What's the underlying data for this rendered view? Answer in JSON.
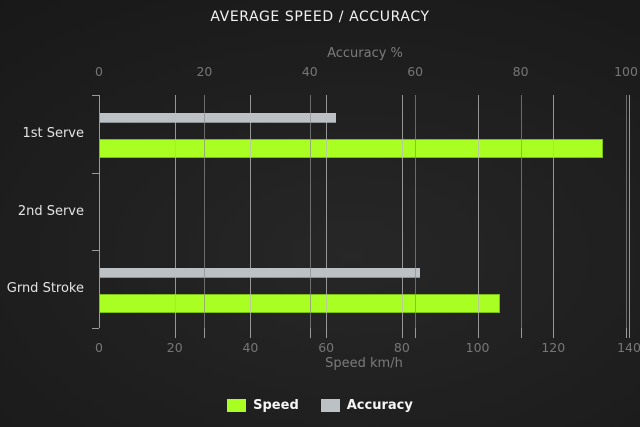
{
  "title": "AVERAGE SPEED / ACCURACY",
  "colors": {
    "speed_bar": "#aaff22",
    "accuracy_bar": "#bcc1c6",
    "grid_speed": "rgba(190,190,190,0.75)",
    "grid_accuracy": "rgba(140,140,140,0.7)",
    "spine": "#9a9a9a",
    "title_text": "#f2f2f2",
    "dim_text": "#7b7b7b",
    "category_text": "#e3e3e3",
    "legend_text": "#f5f5f5"
  },
  "chart_data": {
    "type": "bar",
    "orientation": "horizontal",
    "title": "AVERAGE SPEED / ACCURACY",
    "categories": [
      "1st Serve",
      "2nd Serve",
      "Grnd Stroke"
    ],
    "series": [
      {
        "name": "Speed",
        "axis": "bottom",
        "unit": "km/h",
        "color": "#aaff22",
        "values": [
          133,
          0,
          106
        ]
      },
      {
        "name": "Accuracy",
        "axis": "top",
        "unit": "%",
        "color": "#bcc1c6",
        "values": [
          45,
          0,
          61
        ]
      }
    ],
    "top_axis": {
      "label": "Accuracy %",
      "ticks": [
        0,
        20,
        40,
        60,
        80,
        100
      ],
      "min": 0,
      "max": 100
    },
    "bottom_axis": {
      "label": "Speed km/h",
      "ticks": [
        0,
        20,
        40,
        60,
        80,
        100,
        120,
        140
      ],
      "min": 0,
      "max": 140
    },
    "grid": true,
    "legend_position": "bottom",
    "legend": [
      "Speed",
      "Accuracy"
    ]
  }
}
